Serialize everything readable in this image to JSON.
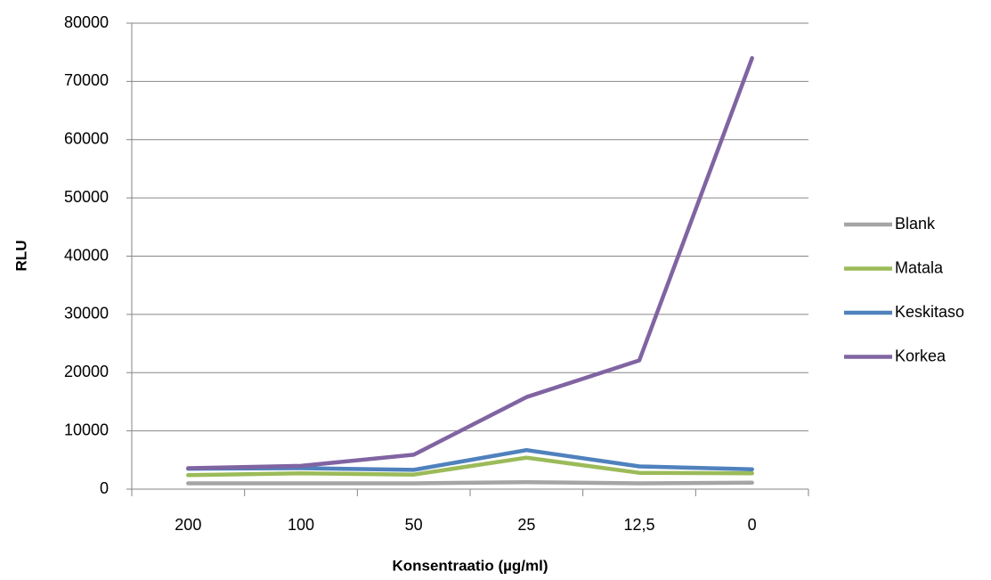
{
  "chart_data": {
    "type": "line",
    "x_label": "Konsentraatio (µg/ml)",
    "y_label": "RLU",
    "categories": [
      "200",
      "100",
      "50",
      "25",
      "12,5",
      "0"
    ],
    "series": [
      {
        "name": "Blank",
        "color": "#a5a5a5",
        "values": [
          1000,
          1000,
          1000,
          1200,
          1000,
          1100
        ]
      },
      {
        "name": "Matala",
        "color": "#9bbb59",
        "values": [
          2400,
          2700,
          2500,
          5400,
          2800,
          2700
        ]
      },
      {
        "name": "Keskitaso",
        "color": "#4f81bd",
        "values": [
          3500,
          3600,
          3300,
          6700,
          3900,
          3400
        ]
      },
      {
        "name": "Korkea",
        "color": "#8064a2",
        "values": [
          3600,
          4000,
          5900,
          15800,
          22100,
          74000
        ]
      }
    ],
    "ylim": [
      0,
      80000
    ],
    "yticks": [
      0,
      10000,
      20000,
      30000,
      40000,
      50000,
      60000,
      70000,
      80000
    ],
    "grid": true,
    "legend": "right"
  }
}
